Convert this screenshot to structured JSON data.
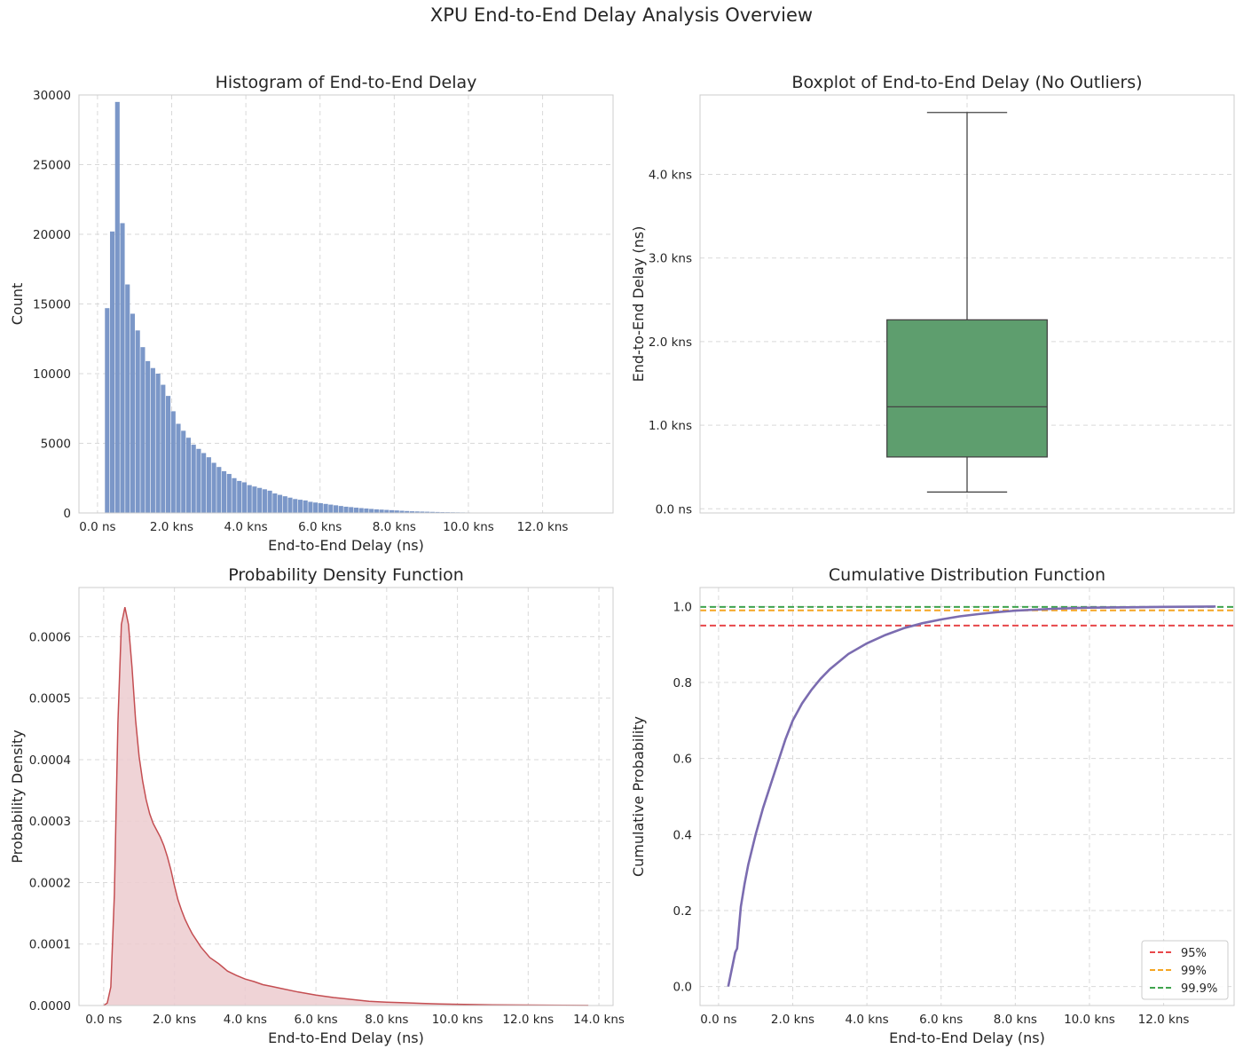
{
  "suptitle": "XPU End-to-End Delay Analysis Overview",
  "chart_data": [
    {
      "type": "bar",
      "title": "Histogram of End-to-End Delay",
      "xlabel": "End-to-End Delay (ns)",
      "ylabel": "Count",
      "xlim": [
        -500,
        13900
      ],
      "ylim": [
        0,
        30000
      ],
      "grid": true,
      "bar_color": "#7b97c8",
      "bin_width": 137,
      "bin_starts": [
        200,
        337,
        474,
        611,
        748,
        885,
        1022,
        1159,
        1296,
        1433,
        1570,
        1707,
        1844,
        1981,
        2118,
        2255,
        2392,
        2529,
        2666,
        2803,
        2940,
        3077,
        3214,
        3351,
        3488,
        3625,
        3762,
        3899,
        4036,
        4173,
        4310,
        4447,
        4584,
        4721,
        4858,
        4995,
        5132,
        5269,
        5406,
        5543,
        5680,
        5817,
        5954,
        6091,
        6228,
        6365,
        6502,
        6639,
        6776,
        6913,
        7050,
        7187,
        7324,
        7461,
        7598,
        7735,
        7872,
        8009,
        8146,
        8283,
        8420,
        8557,
        8694,
        8831,
        8968,
        9105,
        9242,
        9379,
        9516,
        9653,
        9790,
        9927,
        10064
      ],
      "values": [
        14700,
        20200,
        29500,
        20800,
        16400,
        14300,
        13100,
        11900,
        10900,
        10400,
        10000,
        9200,
        8400,
        7300,
        6400,
        5900,
        5400,
        4900,
        4600,
        4300,
        4000,
        3600,
        3300,
        3000,
        2800,
        2500,
        2300,
        2200,
        2000,
        1900,
        1800,
        1700,
        1600,
        1400,
        1300,
        1200,
        1100,
        1000,
        950,
        900,
        800,
        750,
        700,
        650,
        600,
        550,
        500,
        450,
        420,
        380,
        350,
        320,
        290,
        260,
        240,
        220,
        200,
        180,
        160,
        140,
        120,
        110,
        100,
        90,
        80,
        70,
        60,
        55,
        50,
        45,
        40,
        35,
        30
      ],
      "xticks": [
        0,
        2000,
        4000,
        6000,
        8000,
        10000,
        12000
      ],
      "xticklabels": [
        "0.0 ns",
        "2.0 kns",
        "4.0 kns",
        "6.0 kns",
        "8.0 kns",
        "10.0 kns",
        "12.0 kns"
      ],
      "yticks": [
        0,
        5000,
        10000,
        15000,
        20000,
        25000,
        30000
      ],
      "yticklabels": [
        "0",
        "5000",
        "10000",
        "15000",
        "20000",
        "25000",
        "30000"
      ]
    },
    {
      "type": "box",
      "title": "Boxplot of End-to-End Delay (No Outliers)",
      "xlabel": "",
      "ylabel": "End-to-End Delay (ns)",
      "ylim": [
        -50,
        4950
      ],
      "grid": true,
      "box_color": "#5e9e6e",
      "whisker_low": 200,
      "q1": 620,
      "median": 1220,
      "q3": 2260,
      "whisker_high": 4740,
      "yticks": [
        0,
        1000,
        2000,
        3000,
        4000
      ],
      "yticklabels": [
        "0.0 ns",
        "1.0 kns",
        "2.0 kns",
        "3.0 kns",
        "4.0 kns"
      ]
    },
    {
      "type": "area",
      "title": "Probability Density Function",
      "xlabel": "End-to-End Delay (ns)",
      "ylabel": "Probability Density",
      "xlim": [
        -700,
        14400
      ],
      "ylim": [
        0,
        0.00068
      ],
      "grid": true,
      "line_color": "#c44e52",
      "fill_color": "#eccbcf",
      "x": [
        0,
        100,
        200,
        300,
        400,
        500,
        600,
        700,
        800,
        900,
        1000,
        1100,
        1200,
        1300,
        1400,
        1500,
        1600,
        1700,
        1800,
        1900,
        2000,
        2100,
        2200,
        2300,
        2400,
        2500,
        2750,
        3000,
        3250,
        3500,
        3750,
        4000,
        4250,
        4500,
        4750,
        5000,
        5500,
        6000,
        6500,
        7000,
        7500,
        8000,
        8500,
        9000,
        9500,
        10000,
        11000,
        12000,
        13000,
        13700
      ],
      "y": [
        0,
        4e-06,
        3e-05,
        0.00018,
        0.00046,
        0.00062,
        0.000648,
        0.00062,
        0.00055,
        0.000465,
        0.000405,
        0.000365,
        0.000335,
        0.000312,
        0.000296,
        0.000285,
        0.000274,
        0.00026,
        0.000242,
        0.00022,
        0.000195,
        0.000172,
        0.000155,
        0.00014,
        0.000128,
        0.000117,
        9.5e-05,
        7.8e-05,
        6.8e-05,
        5.6e-05,
        4.9e-05,
        4.3e-05,
        3.9e-05,
        3.4e-05,
        3.1e-05,
        2.8e-05,
        2.2e-05,
        1.7e-05,
        1.3e-05,
        1e-05,
        7e-06,
        5.5e-06,
        4.5e-06,
        3.5e-06,
        2.5e-06,
        2e-06,
        1.2e-06,
        7e-07,
        3e-07,
        1e-07
      ],
      "xticks": [
        0,
        2000,
        4000,
        6000,
        8000,
        10000,
        12000,
        14000
      ],
      "xticklabels": [
        "0.0 ns",
        "2.0 kns",
        "4.0 kns",
        "6.0 kns",
        "8.0 kns",
        "10.0 kns",
        "12.0 kns",
        "14.0 kns"
      ],
      "yticks": [
        0,
        0.0001,
        0.0002,
        0.0003,
        0.0004,
        0.0005,
        0.0006
      ],
      "yticklabels": [
        "0.0000",
        "0.0001",
        "0.0002",
        "0.0003",
        "0.0004",
        "0.0005",
        "0.0006"
      ]
    },
    {
      "type": "line",
      "title": "Cumulative Distribution Function",
      "xlabel": "End-to-End Delay (ns)",
      "ylabel": "Cumulative Probability",
      "xlim": [
        -500,
        13900
      ],
      "ylim": [
        -0.05,
        1.05
      ],
      "grid": true,
      "line_color": "#7b6cb0",
      "x": [
        260,
        450,
        500,
        600,
        700,
        800,
        900,
        1000,
        1200,
        1400,
        1600,
        1800,
        2000,
        2250,
        2500,
        2750,
        3000,
        3500,
        4000,
        4500,
        5000,
        5500,
        6000,
        6500,
        7000,
        7500,
        8000,
        9000,
        10000,
        11000,
        12000,
        13000,
        13400
      ],
      "y": [
        0,
        0.09,
        0.1,
        0.21,
        0.27,
        0.32,
        0.36,
        0.4,
        0.47,
        0.53,
        0.59,
        0.65,
        0.7,
        0.745,
        0.78,
        0.81,
        0.835,
        0.875,
        0.903,
        0.925,
        0.943,
        0.956,
        0.966,
        0.974,
        0.98,
        0.985,
        0.989,
        0.994,
        0.997,
        0.998,
        0.999,
        0.9995,
        1.0
      ],
      "reference_lines": [
        {
          "name": "95%",
          "y": 0.95,
          "color": "#e8474a"
        },
        {
          "name": "99%",
          "y": 0.99,
          "color": "#f5a623"
        },
        {
          "name": "99.9%",
          "y": 0.999,
          "color": "#3fa34d"
        }
      ],
      "legend_position": "lower-right",
      "xticks": [
        0,
        2000,
        4000,
        6000,
        8000,
        10000,
        12000
      ],
      "xticklabels": [
        "0.0 ns",
        "2.0 kns",
        "4.0 kns",
        "6.0 kns",
        "8.0 kns",
        "10.0 kns",
        "12.0 kns"
      ],
      "yticks": [
        0,
        0.2,
        0.4,
        0.6,
        0.8,
        1.0
      ],
      "yticklabels": [
        "0.0",
        "0.2",
        "0.4",
        "0.6",
        "0.8",
        "1.0"
      ]
    }
  ]
}
